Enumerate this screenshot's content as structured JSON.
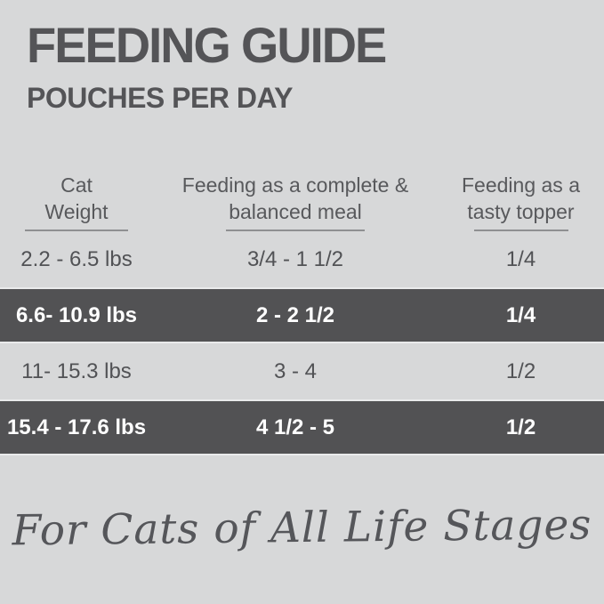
{
  "header": {
    "title": "FEEDING GUIDE",
    "subtitle": "POUCHES PER DAY"
  },
  "table": {
    "columns": [
      {
        "line1": "Cat",
        "line2": "Weight"
      },
      {
        "line1": "Feeding as a complete &",
        "line2": "balanced meal"
      },
      {
        "line1": "Feeding as a",
        "line2": "tasty topper"
      }
    ],
    "rows": [
      {
        "weight": "2.2 - 6.5 lbs",
        "meal": "3/4 - 1 1/2",
        "topper": "1/4",
        "highlighted": false
      },
      {
        "weight": "6.6- 10.9 lbs",
        "meal": "2 - 2 1/2",
        "topper": "1/4",
        "highlighted": true
      },
      {
        "weight": "11- 15.3 lbs",
        "meal": "3 - 4",
        "topper": "1/2",
        "highlighted": false
      },
      {
        "weight": "15.4 - 17.6 lbs",
        "meal": "4 1/2 - 5",
        "topper": "1/2",
        "highlighted": true
      }
    ]
  },
  "footer": {
    "tagline": "For Cats of All Life Stages"
  },
  "colors": {
    "page_background": "#d7d8d9",
    "heading_text": "#545457",
    "body_text": "#515255",
    "highlight_row_background": "#525254",
    "highlight_row_text": "#ffffff",
    "header_underline": "#8f9092",
    "row_hairline": "#e9eaeb"
  }
}
